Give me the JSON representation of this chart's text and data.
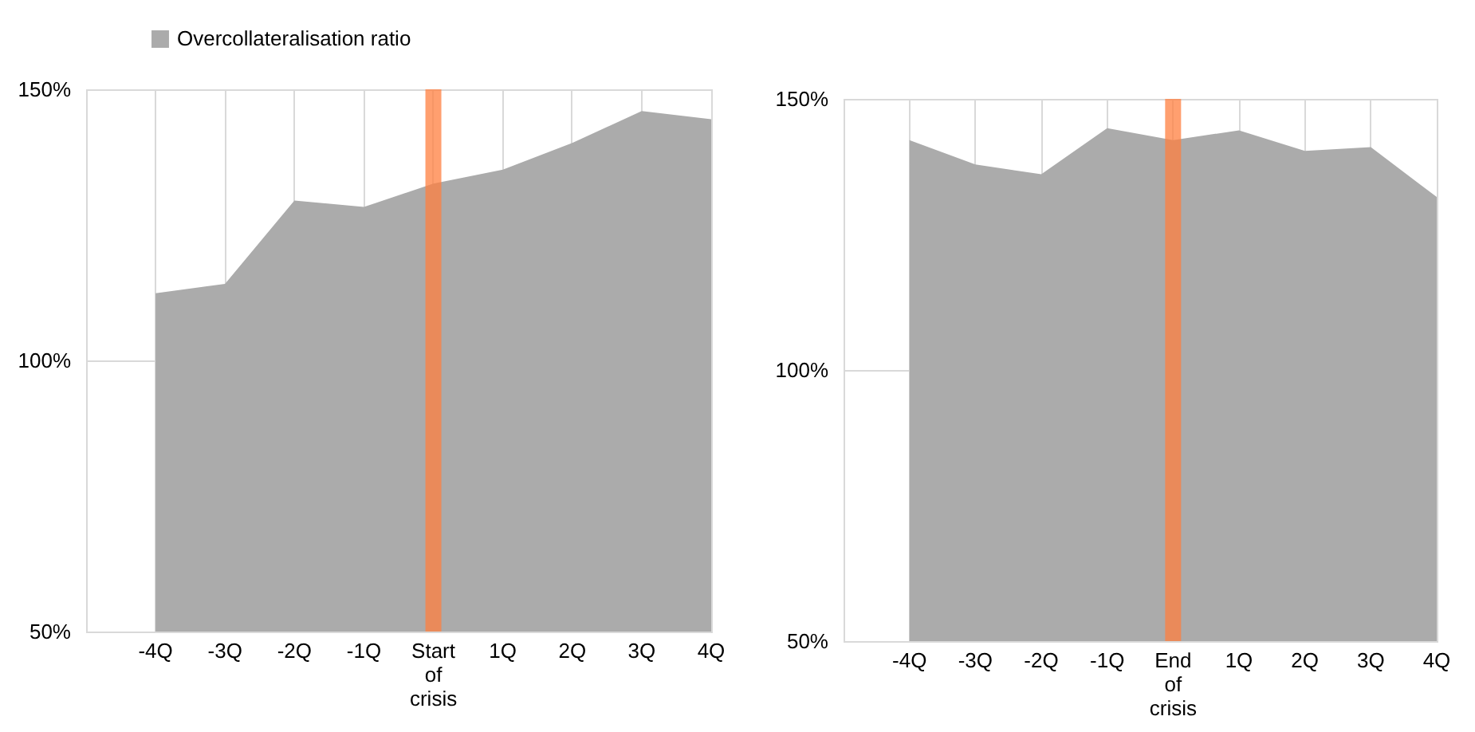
{
  "chart_data": [
    {
      "type": "area",
      "categories": [
        "-4Q",
        "-3Q",
        "-2Q",
        "-1Q",
        "Start of crisis",
        "1Q",
        "2Q",
        "3Q",
        "4Q"
      ],
      "series": [
        {
          "name": "Overcollateralisation ratio",
          "color": "#ababab",
          "values": [
            112.4,
            114.1,
            129.5,
            128.3,
            132.6,
            135.2,
            140.1,
            146.0,
            144.5
          ]
        }
      ],
      "ylim": [
        50,
        150
      ],
      "yticks": [
        {
          "value": 50,
          "label": "50%"
        },
        {
          "value": 100,
          "label": "100%"
        },
        {
          "value": 150,
          "label": "150%"
        }
      ],
      "ref_lines": [
        {
          "axis": "x",
          "value": "Start of crisis",
          "color": "#ff7f3f"
        }
      ],
      "grid": true,
      "legend": "top left"
    },
    {
      "type": "area",
      "categories": [
        "-4Q",
        "-3Q",
        "-2Q",
        "-1Q",
        "End of crisis",
        "1Q",
        "2Q",
        "3Q",
        "4Q"
      ],
      "series": [
        {
          "color": "#ababab",
          "values": [
            142.4,
            137.9,
            136.1,
            144.6,
            142.4,
            144.2,
            140.4,
            141.1,
            131.9
          ]
        }
      ],
      "ylim": [
        50,
        150
      ],
      "yticks": [
        {
          "value": 50,
          "label": "50%"
        },
        {
          "value": 100,
          "label": "100%"
        },
        {
          "value": 150,
          "label": "150%"
        }
      ],
      "ref_lines": [
        {
          "axis": "x",
          "value": "End of crisis",
          "color": "#ff7f3f"
        }
      ],
      "grid": true
    }
  ]
}
